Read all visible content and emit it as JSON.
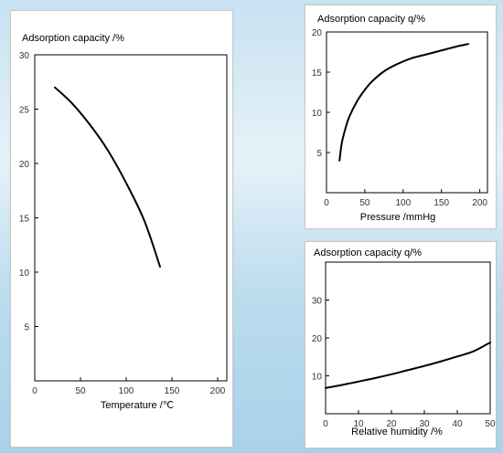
{
  "chart_data": [
    {
      "type": "line",
      "title": "",
      "ylabel": "Adsorption capacity /%",
      "xlabel": "Temperature /℃",
      "xlim": [
        0,
        210
      ],
      "ylim": [
        0,
        30
      ],
      "x_ticks": [
        0,
        50,
        100,
        150,
        200
      ],
      "y_ticks": [
        5,
        10,
        15,
        20,
        25,
        30
      ],
      "x_tick_labels": [
        "0",
        "50",
        "100",
        "150",
        "200"
      ],
      "y_tick_labels": [
        "5",
        "10",
        "15",
        "20",
        "25",
        "30"
      ],
      "series": [
        {
          "x": [
            22,
            40,
            60,
            80,
            100,
            120,
            137
          ],
          "y": [
            27,
            25.6,
            23.6,
            21.2,
            18.2,
            14.7,
            10.5
          ]
        }
      ]
    },
    {
      "type": "line",
      "title": "",
      "ylabel": "Adsorption capacity q/%",
      "xlabel": "Pressure /mmHg",
      "xlim": [
        0,
        210
      ],
      "ylim": [
        0,
        20
      ],
      "x_ticks": [
        0,
        50,
        100,
        150,
        200
      ],
      "y_ticks": [
        5,
        10,
        15,
        20
      ],
      "x_tick_labels": [
        "0",
        "50",
        "100",
        "150",
        "200"
      ],
      "y_tick_labels": [
        "5",
        "10",
        "15",
        "20"
      ],
      "series": [
        {
          "x": [
            17,
            20,
            25,
            30,
            40,
            50,
            60,
            75,
            90,
            110,
            130,
            150,
            170,
            185
          ],
          "y": [
            4,
            6.2,
            8.1,
            9.5,
            11.4,
            12.8,
            13.9,
            15.1,
            15.9,
            16.7,
            17.2,
            17.7,
            18.2,
            18.5
          ]
        }
      ]
    },
    {
      "type": "line",
      "title": "",
      "ylabel": "Adsorption capacity q/%",
      "xlabel": "Relative humidity /%",
      "xlim": [
        0,
        50
      ],
      "ylim": [
        0,
        40
      ],
      "x_ticks": [
        0,
        10,
        20,
        30,
        40,
        50
      ],
      "y_ticks": [
        10,
        20,
        30
      ],
      "x_tick_labels": [
        "0",
        "10",
        "20",
        "30",
        "40",
        "50"
      ],
      "y_tick_labels": [
        "10",
        "20",
        "30"
      ],
      "series": [
        {
          "x": [
            0,
            5,
            10,
            15,
            20,
            25,
            30,
            35,
            40,
            45,
            50
          ],
          "y": [
            6.8,
            7.6,
            8.5,
            9.4,
            10.4,
            11.5,
            12.6,
            13.8,
            15.1,
            16.5,
            18.8
          ]
        }
      ]
    }
  ],
  "colors": {
    "curve": "#000000",
    "axis": "#000000",
    "panel": "#ffffff"
  }
}
